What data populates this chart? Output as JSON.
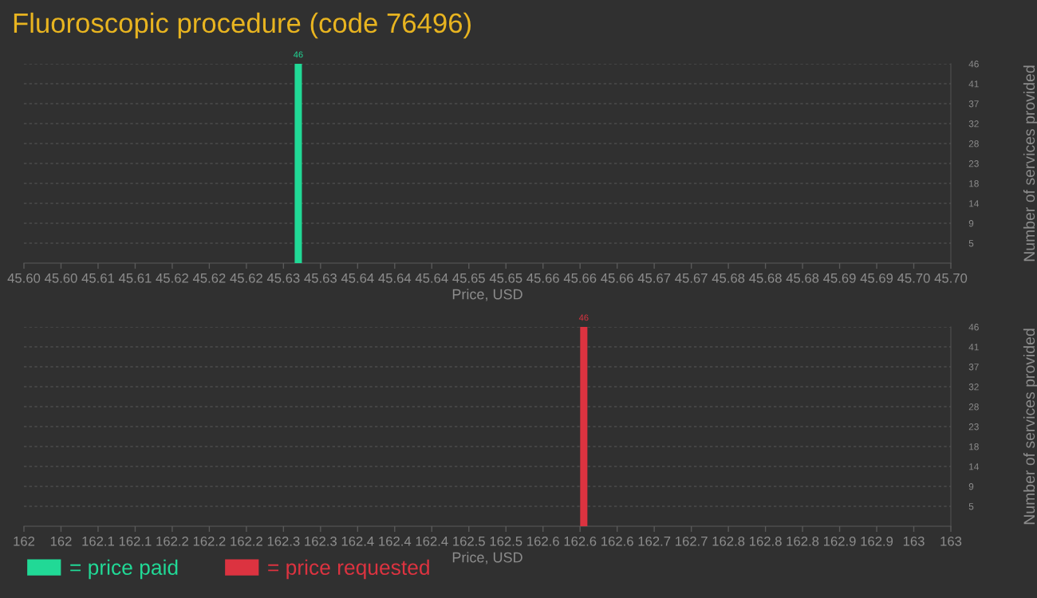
{
  "chart_data": [
    {
      "type": "bar",
      "title": "Fluoroscopic procedure (code 76496)",
      "xlabel": "Price, USD",
      "ylabel": "Number of services provided",
      "x": [
        45.6296
      ],
      "series": [
        {
          "name": "= price paid",
          "color": "#21d996",
          "values": [
            46
          ]
        }
      ],
      "xlim": [
        45.6,
        45.7
      ],
      "xticks": [
        {
          "value": 45.6,
          "label": "45.60"
        },
        {
          "value": 45.604,
          "label": "45.60"
        },
        {
          "value": 45.608,
          "label": "45.61"
        },
        {
          "value": 45.612,
          "label": "45.61"
        },
        {
          "value": 45.616,
          "label": "45.62"
        },
        {
          "value": 45.62,
          "label": "45.62"
        },
        {
          "value": 45.624,
          "label": "45.62"
        },
        {
          "value": 45.628,
          "label": "45.63"
        },
        {
          "value": 45.632,
          "label": "45.63"
        },
        {
          "value": 45.636,
          "label": "45.64"
        },
        {
          "value": 45.64,
          "label": "45.64"
        },
        {
          "value": 45.644,
          "label": "45.64"
        },
        {
          "value": 45.648,
          "label": "45.65"
        },
        {
          "value": 45.652,
          "label": "45.65"
        },
        {
          "value": 45.656,
          "label": "45.66"
        },
        {
          "value": 45.66,
          "label": "45.66"
        },
        {
          "value": 45.664,
          "label": "45.66"
        },
        {
          "value": 45.668,
          "label": "45.67"
        },
        {
          "value": 45.672,
          "label": "45.67"
        },
        {
          "value": 45.676,
          "label": "45.68"
        },
        {
          "value": 45.68,
          "label": "45.68"
        },
        {
          "value": 45.684,
          "label": "45.68"
        },
        {
          "value": 45.688,
          "label": "45.69"
        },
        {
          "value": 45.692,
          "label": "45.69"
        },
        {
          "value": 45.696,
          "label": "45.70"
        },
        {
          "value": 45.7,
          "label": "45.70"
        }
      ],
      "ylim": [
        0,
        46
      ],
      "yticks": [
        {
          "value": 4.6,
          "label": "5"
        },
        {
          "value": 9.2,
          "label": "9"
        },
        {
          "value": 13.8,
          "label": "14"
        },
        {
          "value": 18.4,
          "label": "18"
        },
        23,
        {
          "value": 27.6,
          "label": "28"
        },
        {
          "value": 32.2,
          "label": "32"
        },
        {
          "value": 36.8,
          "label": "37"
        },
        {
          "value": 41.4,
          "label": "41"
        },
        46
      ],
      "grid": "y",
      "data_labels": true,
      "legend": "bottom left"
    },
    {
      "type": "bar",
      "xlabel": "Price, USD",
      "ylabel": "Number of services provided",
      "x": [
        162.604
      ],
      "series": [
        {
          "name": "= price requested",
          "color": "#dc3340",
          "values": [
            46
          ]
        }
      ],
      "xlim": [
        162,
        163
      ],
      "xticks": [
        {
          "value": 162,
          "label": "162"
        },
        {
          "value": 162.04,
          "label": "162"
        },
        {
          "value": 162.08,
          "label": "162.1"
        },
        {
          "value": 162.12,
          "label": "162.1"
        },
        {
          "value": 162.16,
          "label": "162.2"
        },
        {
          "value": 162.2,
          "label": "162.2"
        },
        {
          "value": 162.24,
          "label": "162.2"
        },
        {
          "value": 162.28,
          "label": "162.3"
        },
        {
          "value": 162.32,
          "label": "162.3"
        },
        {
          "value": 162.36,
          "label": "162.4"
        },
        {
          "value": 162.4,
          "label": "162.4"
        },
        {
          "value": 162.44,
          "label": "162.4"
        },
        {
          "value": 162.48,
          "label": "162.5"
        },
        {
          "value": 162.52,
          "label": "162.5"
        },
        {
          "value": 162.56,
          "label": "162.6"
        },
        {
          "value": 162.6,
          "label": "162.6"
        },
        {
          "value": 162.64,
          "label": "162.6"
        },
        {
          "value": 162.68,
          "label": "162.7"
        },
        {
          "value": 162.72,
          "label": "162.7"
        },
        {
          "value": 162.76,
          "label": "162.8"
        },
        {
          "value": 162.8,
          "label": "162.8"
        },
        {
          "value": 162.84,
          "label": "162.8"
        },
        {
          "value": 162.88,
          "label": "162.9"
        },
        {
          "value": 162.92,
          "label": "162.9"
        },
        {
          "value": 162.96,
          "label": "163"
        },
        {
          "value": 163,
          "label": "163"
        }
      ],
      "ylim": [
        0,
        46
      ],
      "yticks": [
        {
          "value": 4.6,
          "label": "5"
        },
        {
          "value": 9.2,
          "label": "9"
        },
        {
          "value": 13.8,
          "label": "14"
        },
        {
          "value": 18.4,
          "label": "18"
        },
        23,
        {
          "value": 27.6,
          "label": "28"
        },
        {
          "value": 32.2,
          "label": "32"
        },
        {
          "value": 36.8,
          "label": "37"
        },
        {
          "value": 41.4,
          "label": "41"
        },
        46
      ],
      "grid": "y",
      "data_labels": true,
      "legend": "bottom left"
    }
  ]
}
